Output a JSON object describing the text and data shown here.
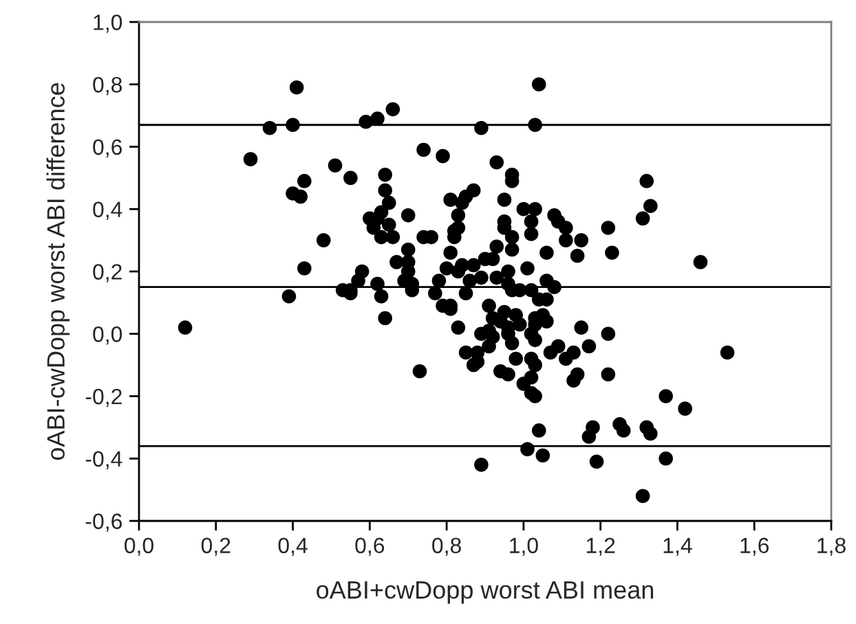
{
  "chart_data": {
    "type": "scatter",
    "xlabel": "oABI+cwDopp worst ABI mean",
    "ylabel": "oABI-cwDopp worst ABI difference",
    "xlim": [
      0,
      1.8
    ],
    "ylim": [
      -0.6,
      1.0
    ],
    "xticks": [
      {
        "value": 0,
        "label": "0,0"
      },
      {
        "value": 0.2,
        "label": "0,2"
      },
      {
        "value": 0.4,
        "label": "0,4"
      },
      {
        "value": 0.6,
        "label": "0,6"
      },
      {
        "value": 0.8,
        "label": "0,8"
      },
      {
        "value": 1.0,
        "label": "1,0"
      },
      {
        "value": 1.2,
        "label": "1,2"
      },
      {
        "value": 1.4,
        "label": "1,4"
      },
      {
        "value": 1.6,
        "label": "1,6"
      },
      {
        "value": 1.8,
        "label": "1,8"
      }
    ],
    "yticks": [
      {
        "value": -0.6,
        "label": "-0,6"
      },
      {
        "value": -0.4,
        "label": "-0,4"
      },
      {
        "value": -0.2,
        "label": "-0,2"
      },
      {
        "value": 0,
        "label": "0,0"
      },
      {
        "value": 0.2,
        "label": "0,2"
      },
      {
        "value": 0.4,
        "label": "0,4"
      },
      {
        "value": 0.6,
        "label": "0,6"
      },
      {
        "value": 0.8,
        "label": "0,8"
      },
      {
        "value": 1.0,
        "label": "1,0"
      }
    ],
    "grid": false,
    "legend": false,
    "marker": "circle",
    "ref_lines": [
      {
        "axis": "y",
        "value": 0.67,
        "color": "#000000"
      },
      {
        "axis": "y",
        "value": 0.15,
        "color": "#000000"
      },
      {
        "axis": "y",
        "value": -0.36,
        "color": "#000000"
      }
    ],
    "series": [
      {
        "color": "#000000",
        "x": [
          0.12,
          0.29,
          0.34,
          0.4,
          0.41,
          0.4,
          0.42,
          0.43,
          0.39,
          0.43,
          0.48,
          0.51,
          0.55,
          0.53,
          0.55,
          0.55,
          0.57,
          0.58,
          0.59,
          0.62,
          0.66,
          0.64,
          0.64,
          0.65,
          0.63,
          0.6,
          0.62,
          0.61,
          0.63,
          0.65,
          0.66,
          0.7,
          0.62,
          0.63,
          0.64,
          0.67,
          0.69,
          0.7,
          0.7,
          0.71,
          0.71,
          0.7,
          0.73,
          0.74,
          0.76,
          0.74,
          0.79,
          0.77,
          0.78,
          0.79,
          0.81,
          0.81,
          0.81,
          0.8,
          0.83,
          0.84,
          0.85,
          0.86,
          0.87,
          0.83,
          0.85,
          0.88,
          0.87,
          0.88,
          0.89,
          0.89,
          0.81,
          0.84,
          0.85,
          0.87,
          0.83,
          0.82,
          0.83,
          0.82,
          0.89,
          0.93,
          0.97,
          0.97,
          1.04,
          1.03,
          0.95,
          1.0,
          1.03,
          1.08,
          1.09,
          1.11,
          1.22,
          1.32,
          1.33,
          1.31,
          0.95,
          0.95,
          1.02,
          1.02,
          0.97,
          1.11,
          1.15,
          0.93,
          0.97,
          1.06,
          1.14,
          1.23,
          1.46,
          0.9,
          0.92,
          1.01,
          0.89,
          0.93,
          0.96,
          0.96,
          0.97,
          0.99,
          1.06,
          1.08,
          1.02,
          1.04,
          1.06,
          0.91,
          0.95,
          0.98,
          0.92,
          0.94,
          0.96,
          0.99,
          0.91,
          0.92,
          0.96,
          1.03,
          1.05,
          1.06,
          1.03,
          1.02,
          1.03,
          0.97,
          0.98,
          1.07,
          1.09,
          1.11,
          1.13,
          1.15,
          1.17,
          1.22,
          1.53,
          0.91,
          0.94,
          0.96,
          1.0,
          1.02,
          1.03,
          1.02,
          1.02,
          1.03,
          1.13,
          1.14,
          1.22,
          1.37,
          1.42,
          1.04,
          1.01,
          1.05,
          1.18,
          1.17,
          1.19,
          1.25,
          1.26,
          1.32,
          1.33,
          1.37,
          1.31
        ],
        "values": [
          0.02,
          0.56,
          0.66,
          0.67,
          0.79,
          0.45,
          0.44,
          0.49,
          0.12,
          0.21,
          0.3,
          0.54,
          0.5,
          0.14,
          0.13,
          0.14,
          0.17,
          0.2,
          0.68,
          0.69,
          0.72,
          0.51,
          0.46,
          0.42,
          0.39,
          0.37,
          0.37,
          0.34,
          0.31,
          0.35,
          0.31,
          0.38,
          0.16,
          0.12,
          0.05,
          0.23,
          0.17,
          0.23,
          0.2,
          0.14,
          0.16,
          0.27,
          -0.12,
          0.31,
          0.31,
          0.59,
          0.57,
          0.13,
          0.17,
          0.09,
          0.09,
          0.08,
          0.26,
          0.21,
          0.2,
          0.22,
          0.13,
          0.17,
          0.22,
          0.02,
          -0.06,
          -0.06,
          -0.1,
          -0.09,
          -0.42,
          0.0,
          0.43,
          0.42,
          0.44,
          0.46,
          0.38,
          0.33,
          0.34,
          0.31,
          0.66,
          0.55,
          0.51,
          0.49,
          0.8,
          0.67,
          0.43,
          0.4,
          0.4,
          0.38,
          0.36,
          0.34,
          0.34,
          0.49,
          0.41,
          0.37,
          0.36,
          0.34,
          0.36,
          0.32,
          0.31,
          0.3,
          0.3,
          0.28,
          0.27,
          0.26,
          0.25,
          0.26,
          0.23,
          0.24,
          0.24,
          0.21,
          0.18,
          0.18,
          0.2,
          0.16,
          0.14,
          0.14,
          0.17,
          0.15,
          0.14,
          0.11,
          0.11,
          0.09,
          0.07,
          0.06,
          0.05,
          0.04,
          0.02,
          0.03,
          0.01,
          -0.01,
          0.0,
          0.05,
          0.06,
          0.04,
          0.03,
          0.0,
          -0.02,
          -0.03,
          -0.08,
          -0.06,
          -0.04,
          -0.08,
          -0.06,
          0.02,
          -0.04,
          0.0,
          -0.06,
          -0.04,
          -0.12,
          -0.13,
          -0.16,
          -0.08,
          -0.1,
          -0.14,
          -0.19,
          -0.2,
          -0.15,
          -0.13,
          -0.13,
          -0.2,
          -0.24,
          -0.31,
          -0.37,
          -0.39,
          -0.3,
          -0.33,
          -0.41,
          -0.29,
          -0.31,
          -0.3,
          -0.32,
          -0.4,
          -0.52
        ]
      }
    ]
  }
}
